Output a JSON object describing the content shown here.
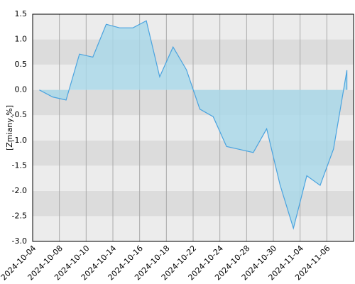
{
  "chart_data": {
    "type": "area",
    "y_label": "[Zmiany,%]",
    "x_tick_labels": [
      "2024-10-04",
      "2024-10-08",
      "2024-10-10",
      "2024-10-14",
      "2024-10-16",
      "2024-10-18",
      "2024-10-22",
      "2024-10-24",
      "2024-10-28",
      "2024-10-30",
      "2024-11-04",
      "2024-11-06"
    ],
    "values": [
      0,
      -0.14,
      -0.2,
      0.71,
      0.65,
      1.3,
      1.23,
      1.23,
      1.37,
      0.26,
      0.85,
      0.4,
      -0.38,
      -0.53,
      -1.12,
      -1.18,
      -1.24,
      -0.77,
      -1.88,
      -2.74,
      -1.7,
      -1.89,
      -1.17,
      0.39
    ],
    "color": "#4aa3df",
    "ylim": [
      -3.0,
      1.5
    ],
    "yticks": [
      {
        "value": -3,
        "label": "-3.0"
      },
      {
        "value": -2.5,
        "label": "-2.5"
      },
      {
        "value": -2,
        "label": "-2.0"
      },
      {
        "value": -1.5,
        "label": "-1.5"
      },
      {
        "value": -1,
        "label": "-1.0"
      },
      {
        "value": -0.5,
        "label": "-0.5"
      },
      {
        "value": 0,
        "label": "0.0"
      },
      {
        "value": 0.5,
        "label": "0.5"
      },
      {
        "value": 1,
        "label": "1.0"
      },
      {
        "value": 1.5,
        "label": "1.5"
      }
    ],
    "grid": true
  }
}
